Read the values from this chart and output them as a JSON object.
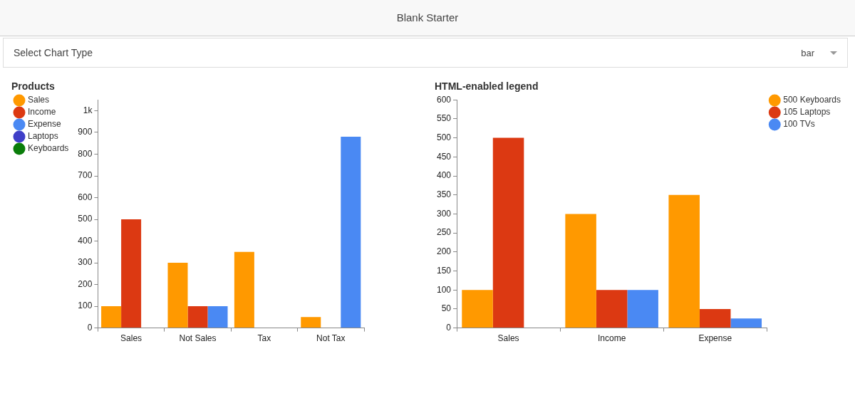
{
  "chart_data": [
    {
      "type": "bar",
      "title": "Products",
      "annotations": [
        "Blank Starter",
        "Select Chart Type",
        "bar"
      ],
      "categories": [
        "Sales",
        "Not Sales",
        "Tax",
        "Not Tax"
      ],
      "series": [
        {
          "name": "Sales",
          "color": "#ff9900",
          "values": [
            100,
            300,
            350,
            50
          ]
        },
        {
          "name": "Income",
          "color": "#dc3912",
          "values": [
            500,
            100,
            null,
            null
          ]
        },
        {
          "name": "Expense",
          "color": "#4a89f3",
          "values": [
            null,
            100,
            null,
            880
          ]
        },
        {
          "name": "Laptops",
          "color": "#3f3fc8",
          "values": [
            null,
            null,
            null,
            null
          ]
        },
        {
          "name": "Keyboards",
          "color": "#0a7d0a",
          "values": [
            null,
            null,
            null,
            null
          ]
        }
      ],
      "ylim": [
        0,
        1050
      ],
      "yticks": [
        0,
        100,
        200,
        300,
        400,
        500,
        600,
        700,
        800,
        900,
        {
          "value": 1000,
          "label": "1k"
        }
      ],
      "grid": false,
      "legend": "top left"
    },
    {
      "type": "bar",
      "title": "HTML-enabled legend",
      "categories": [
        "Sales",
        "Income",
        "Expense"
      ],
      "series": [
        {
          "name": "500 Keyboards",
          "color": "#ff9900",
          "values": [
            100,
            300,
            350
          ]
        },
        {
          "name": "105 Laptops",
          "color": "#dc3912",
          "values": [
            500,
            100,
            50
          ]
        },
        {
          "name": "100 TVs",
          "color": "#4a89f3",
          "values": [
            null,
            100,
            25
          ]
        }
      ],
      "ylim": [
        0,
        600
      ],
      "yticks": [
        0,
        50,
        100,
        150,
        200,
        250,
        300,
        350,
        400,
        450,
        500,
        550,
        600
      ],
      "grid": false,
      "legend": "top right"
    }
  ]
}
